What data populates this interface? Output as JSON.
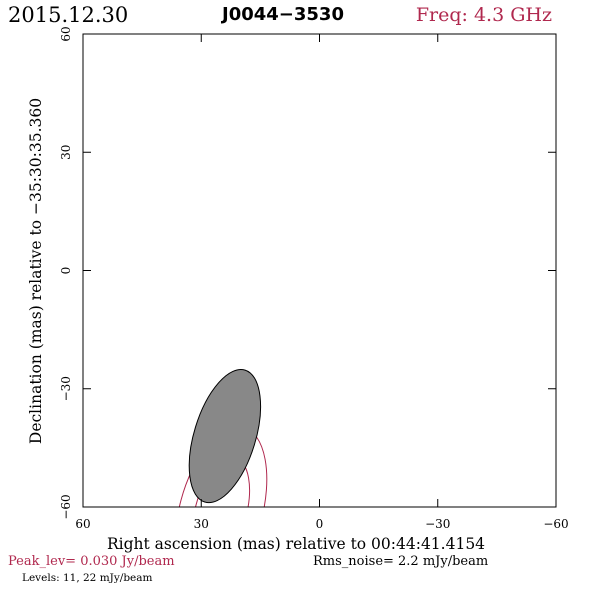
{
  "header": {
    "date": "2015.12.30",
    "source": "J0044−3530",
    "freq": "Freq: 4.3 GHz"
  },
  "footer": {
    "peak": "Peak_lev=  0.030 Jy/beam",
    "rms": "Rms_noise=  2.2 mJy/beam",
    "levels": "Levels:  11,  22 mJy/beam"
  },
  "colors": {
    "contour": "#b0284e",
    "beam_fill": "#888888",
    "axes": "#000000"
  },
  "chart_data": {
    "type": "contour",
    "xlabel": "Right ascension (mas) relative to 00:44:41.4154",
    "ylabel": "Declination (mas) relative to −35:30:35.360",
    "xlim": [
      60,
      -60
    ],
    "ylim": [
      -60,
      60
    ],
    "x_ticks": [
      60,
      30,
      0,
      -30,
      -60
    ],
    "y_ticks": [
      -60,
      -30,
      0,
      30,
      60
    ],
    "x_tick_labels": [
      "60",
      "30",
      "0",
      "−30",
      "−60"
    ],
    "y_tick_labels": [
      "−60",
      "−30",
      "0",
      "30",
      "60"
    ],
    "peak_jy_per_beam": 0.03,
    "rms_mjy_per_beam": 2.2,
    "contour_levels_mjy": [
      11,
      22
    ],
    "contours": [
      {
        "level": 11,
        "center": [
          25,
          -61
        ],
        "semi_major_mas": 22,
        "semi_minor_mas": 10.5,
        "pa_deg": 15
      },
      {
        "level": 22,
        "center": [
          25,
          -61
        ],
        "semi_major_mas": 14,
        "semi_minor_mas": 6.5,
        "pa_deg": 15
      }
    ],
    "beam": {
      "center": [
        24,
        -42
      ],
      "semi_major_mas": 17.5,
      "semi_minor_mas": 7.8,
      "pa_deg": 17
    }
  }
}
